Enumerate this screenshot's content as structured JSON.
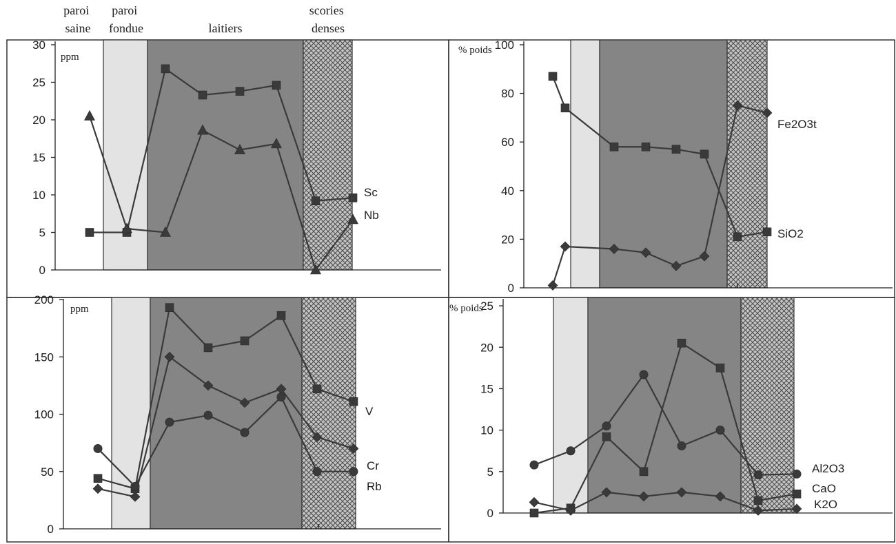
{
  "headers": [
    {
      "id": "h1",
      "lines": [
        "paroi",
        "saine"
      ]
    },
    {
      "id": "h2",
      "lines": [
        "paroi",
        "fondue"
      ]
    },
    {
      "id": "h3",
      "lines": [
        "laitiers"
      ]
    },
    {
      "id": "h4",
      "lines": [
        "scories",
        "denses"
      ]
    }
  ],
  "zone_colors": {
    "fondue": "#e3e3e3",
    "laitiers": "#858585",
    "scories": "#b8b8b8"
  },
  "chart_data": [
    {
      "type": "line",
      "unit": "ppm",
      "yticks": [
        0,
        5,
        10,
        15,
        20,
        25,
        30
      ],
      "ylim": [
        0,
        30
      ],
      "x": [
        1,
        2,
        3,
        4,
        5,
        6,
        7,
        8
      ],
      "series": [
        {
          "name": "Sc",
          "marker": "square",
          "values": [
            5,
            5,
            26.8,
            23.3,
            23.8,
            24.6,
            9.2,
            9.6
          ]
        },
        {
          "name": "Nb",
          "marker": "triangle",
          "values": [
            20.5,
            5.5,
            5,
            18.6,
            16,
            16.8,
            0,
            6.7
          ]
        }
      ]
    },
    {
      "type": "line",
      "unit": "% poids",
      "yticks": [
        0,
        20,
        40,
        60,
        80,
        100
      ],
      "ylim": [
        0,
        100
      ],
      "x": [
        1,
        2,
        3,
        4,
        5,
        6,
        7,
        8
      ],
      "series": [
        {
          "name": "Fe2O3t",
          "marker": "diamond",
          "values": [
            1,
            17,
            16,
            14.5,
            9,
            13,
            75,
            72
          ]
        },
        {
          "name": "SiO2",
          "marker": "square",
          "values": [
            87,
            74,
            58,
            58,
            57,
            55,
            21,
            23
          ]
        }
      ]
    },
    {
      "type": "line",
      "unit": "ppm",
      "yticks": [
        0,
        50,
        100,
        150,
        200
      ],
      "ylim": [
        0,
        200
      ],
      "x": [
        1,
        2,
        3,
        4,
        5,
        6,
        7,
        8
      ],
      "series": [
        {
          "name": "V",
          "marker": "square",
          "values": [
            44,
            35,
            193,
            158,
            164,
            186,
            122,
            111
          ]
        },
        {
          "name": "Cr",
          "marker": "diamond",
          "values": [
            35,
            28,
            150,
            125,
            110,
            122,
            80,
            70
          ]
        },
        {
          "name": "Rb",
          "marker": "circle",
          "values": [
            70,
            37,
            93,
            99,
            84,
            115,
            50,
            50
          ]
        }
      ]
    },
    {
      "type": "line",
      "unit": "% poids",
      "yticks": [
        0,
        5,
        10,
        15,
        20,
        25
      ],
      "ylim": [
        0,
        27
      ],
      "x": [
        1,
        2,
        3,
        4,
        5,
        6,
        7,
        8
      ],
      "series": [
        {
          "name": "Al2O3",
          "marker": "circle",
          "values": [
            5.8,
            7.5,
            10.5,
            16.7,
            8.1,
            10,
            4.6,
            4.7
          ]
        },
        {
          "name": "CaO",
          "marker": "square",
          "values": [
            0,
            0.6,
            9.2,
            5,
            20.5,
            17.5,
            1.5,
            2.3
          ]
        },
        {
          "name": "K2O",
          "marker": "diamond",
          "values": [
            1.3,
            0.3,
            2.5,
            2,
            2.5,
            2,
            0.3,
            0.5
          ]
        }
      ]
    }
  ]
}
